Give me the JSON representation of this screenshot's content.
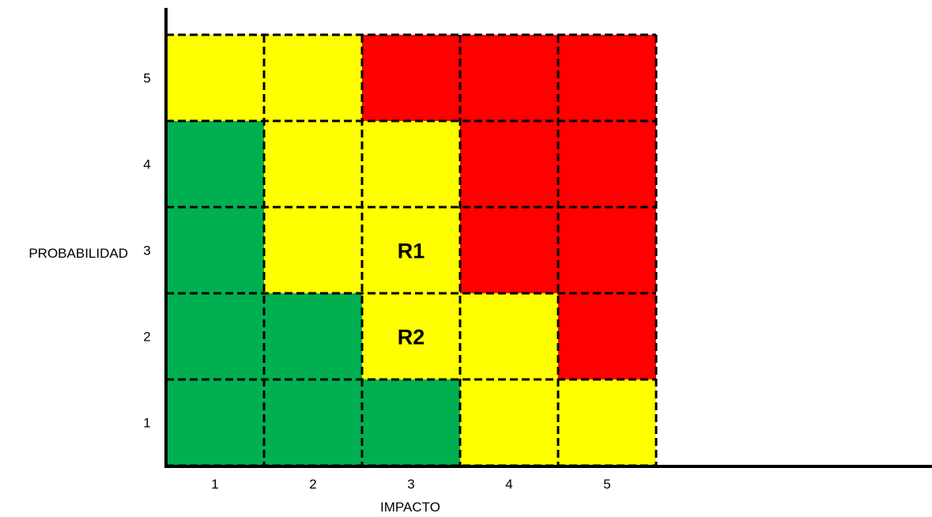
{
  "chart_data": {
    "type": "heatmap",
    "title": "",
    "xlabel": "IMPACTO",
    "ylabel": "PROBABILIDAD",
    "x_categories": [
      "1",
      "2",
      "3",
      "4",
      "5"
    ],
    "y_categories": [
      "1",
      "2",
      "3",
      "4",
      "5"
    ],
    "color_scale": {
      "green": "#00B050",
      "yellow": "#FFFF00",
      "red": "#FF0000"
    },
    "cells": [
      [
        "yellow",
        "yellow",
        "red",
        "red",
        "red"
      ],
      [
        "green",
        "yellow",
        "yellow",
        "red",
        "red"
      ],
      [
        "green",
        "yellow",
        "yellow",
        "red",
        "red"
      ],
      [
        "green",
        "green",
        "yellow",
        "yellow",
        "red"
      ],
      [
        "green",
        "green",
        "green",
        "yellow",
        "yellow"
      ]
    ],
    "cells_row_order": "top-to-bottom (probabilidad 5 to 1), columns impacto 1 to 5",
    "risks": [
      {
        "label": "R1",
        "impacto": 3,
        "probabilidad": 3
      },
      {
        "label": "R2",
        "impacto": 3,
        "probabilidad": 2
      }
    ],
    "grid": true,
    "grid_style": "dashed",
    "legend": false
  }
}
